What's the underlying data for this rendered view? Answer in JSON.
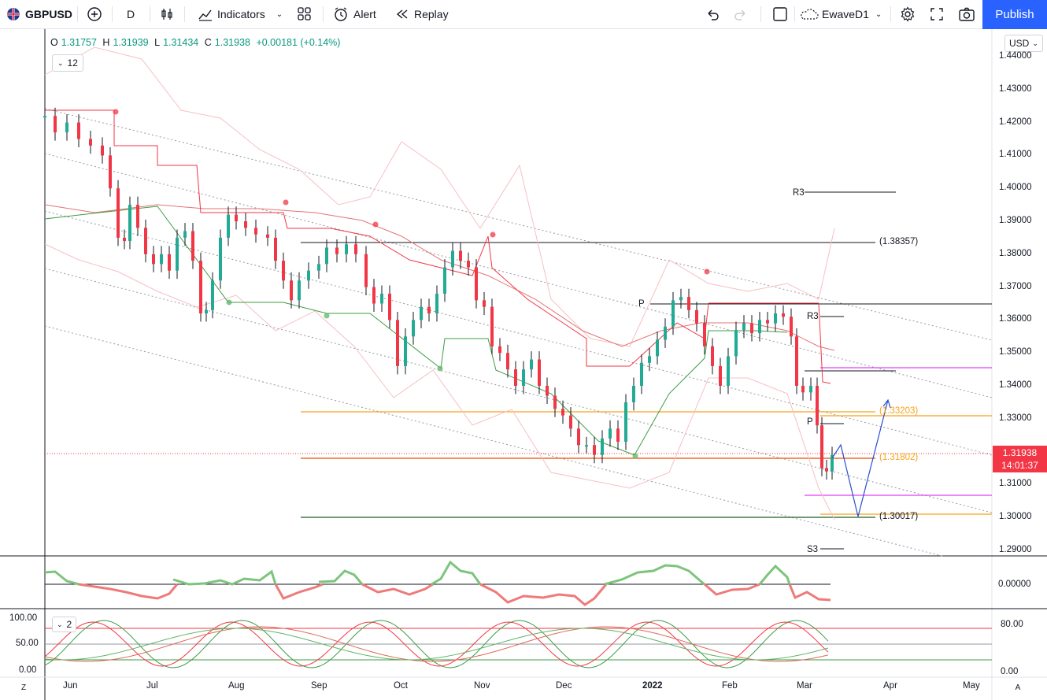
{
  "toolbar": {
    "symbol": "GBPUSD",
    "interval": "D",
    "indicators_label": "Indicators",
    "alert_label": "Alert",
    "replay_label": "Replay",
    "layout_name": "EwaveD1",
    "publish_label": "Publish"
  },
  "legend": {
    "o_key": "O",
    "o": "1.31757",
    "h_key": "H",
    "h": "1.31939",
    "l_key": "L",
    "l": "1.31434",
    "c_key": "C",
    "c": "1.31938",
    "change": "+0.00181 (+0.14%)",
    "indicator_count": "12",
    "lower_indicator_count": "2"
  },
  "price_axis": {
    "currency": "USD",
    "ticks": [
      "1.44000",
      "1.43000",
      "1.42000",
      "1.41000",
      "1.40000",
      "1.39000",
      "1.38000",
      "1.37000",
      "1.36000",
      "1.35000",
      "1.34000",
      "1.33000",
      "1.32000",
      "1.31000",
      "1.30000",
      "1.29000"
    ],
    "last_price": "1.31938",
    "countdown": "14:01:37",
    "osc_tick": "0.00000",
    "stoch_right_ticks": [
      "80.00",
      "0.00"
    ],
    "stoch_left_ticks": [
      "100.00",
      "50.00",
      "0.00"
    ]
  },
  "time_axis": [
    "Jun",
    "Jul",
    "Aug",
    "Sep",
    "Oct",
    "Nov",
    "Dec",
    "2022",
    "Feb",
    "Mar",
    "Apr",
    "May"
  ],
  "levels": {
    "r3_top": "R3",
    "level_38357": "(1.38357)",
    "p_upper": "P",
    "r3_mid": "R3",
    "level_33203": "(1.33203)",
    "p_lower": "P",
    "level_31802": "(1.31802)",
    "level_30017": "(1.30017)",
    "s3": "S3"
  },
  "bottom_left": "Z",
  "bottom_right": "A",
  "colors": {
    "up": "#22ab94",
    "down": "#f23645",
    "accent": "#2962ff",
    "orange_level": "#f7a21b",
    "magenta_level": "#e040fb"
  }
}
